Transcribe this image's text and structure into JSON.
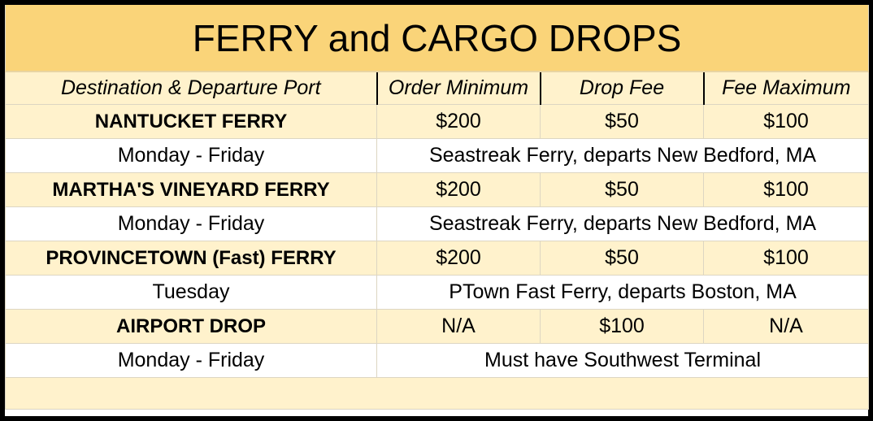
{
  "title": "FERRY and CARGO DROPS",
  "headers": [
    "Destination & Departure Port",
    "Order Minimum",
    "Drop Fee",
    "Fee Maximum"
  ],
  "rows": [
    {
      "name": "NANTUCKET FERRY",
      "order_min": "$200",
      "drop_fee": "$50",
      "fee_max": "$100",
      "days": "Monday - Friday",
      "details": "Seastreak Ferry, departs New Bedford, MA"
    },
    {
      "name": "MARTHA'S VINEYARD FERRY",
      "order_min": "$200",
      "drop_fee": "$50",
      "fee_max": "$100",
      "days": "Monday - Friday",
      "details": "Seastreak Ferry, departs New Bedford, MA"
    },
    {
      "name": "PROVINCETOWN (Fast) FERRY",
      "order_min": "$200",
      "drop_fee": "$50",
      "fee_max": "$100",
      "days": "Tuesday",
      "details": "PTown Fast Ferry, departs Boston, MA"
    },
    {
      "name": "AIRPORT DROP",
      "order_min": "N/A",
      "drop_fee": "$100",
      "fee_max": "N/A",
      "days": "Monday - Friday",
      "details": "Must have Southwest Terminal"
    }
  ],
  "colors": {
    "title_bg": "#fad479",
    "shaded_bg": "#fff2cc",
    "border": "#000000"
  }
}
